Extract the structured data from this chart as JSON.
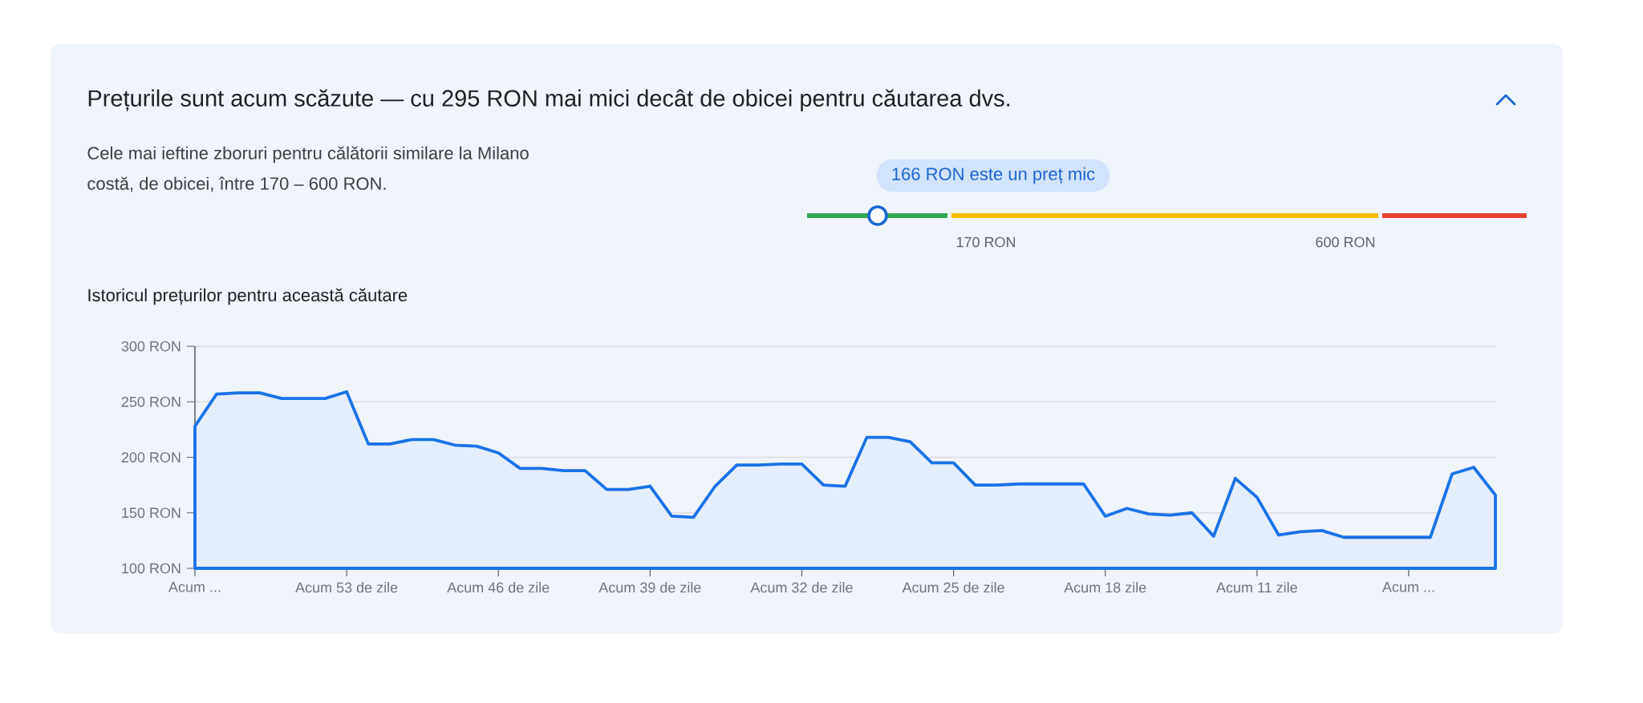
{
  "chart_data": [
    {
      "type": "other",
      "title": "Prețurile sunt acum scăzute — cu 295 RON mai mici decât de obicei pentru căutarea dvs.",
      "subtitle": "Cele mai ieftine zboruri pentru călătorii similare la Milano costă, de obicei, între 170 – 600 RON.",
      "annotations": [
        "166 RON este un preț mic",
        "170 RON",
        "600 RON"
      ]
    },
    {
      "type": "area",
      "title": "Istoricul prețurilor pentru această căutare",
      "categories": [
        "Acum ...",
        null,
        null,
        null,
        null,
        null,
        null,
        "Acum 53 de zile",
        null,
        null,
        null,
        null,
        null,
        null,
        "Acum 46 de zile",
        null,
        null,
        null,
        null,
        null,
        null,
        "Acum 39 de zile",
        null,
        null,
        null,
        null,
        null,
        null,
        "Acum 32 de zile",
        null,
        null,
        null,
        null,
        null,
        null,
        "Acum 25 de zile",
        null,
        null,
        null,
        null,
        null,
        null,
        "Acum 18 zile",
        null,
        null,
        null,
        null,
        null,
        null,
        "Acum 11 zile",
        null,
        null,
        null,
        null,
        null,
        null,
        "Acum ...",
        null,
        null,
        null,
        null
      ],
      "values": [
        228,
        257,
        258,
        258,
        253,
        253,
        253,
        259,
        212,
        212,
        216,
        216,
        211,
        210,
        204,
        190,
        190,
        188,
        188,
        171,
        171,
        174,
        147,
        146,
        174,
        193,
        193,
        194,
        194,
        175,
        174,
        218,
        218,
        214,
        195,
        195,
        175,
        175,
        176,
        176,
        176,
        176,
        147,
        154,
        149,
        148,
        150,
        129,
        181,
        164,
        130,
        133,
        134,
        128,
        128,
        128,
        128,
        128,
        185,
        191,
        166
      ],
      "color": "#1a73e8",
      "ylim": [
        100,
        300
      ],
      "yticks": [
        {
          "value": 100,
          "label": "100 RON"
        },
        {
          "value": 150,
          "label": "150 RON"
        },
        {
          "value": 200,
          "label": "200 RON"
        },
        {
          "value": 250,
          "label": "250 RON"
        },
        {
          "value": 300,
          "label": "300 RON"
        }
      ],
      "grid": "y"
    }
  ]
}
